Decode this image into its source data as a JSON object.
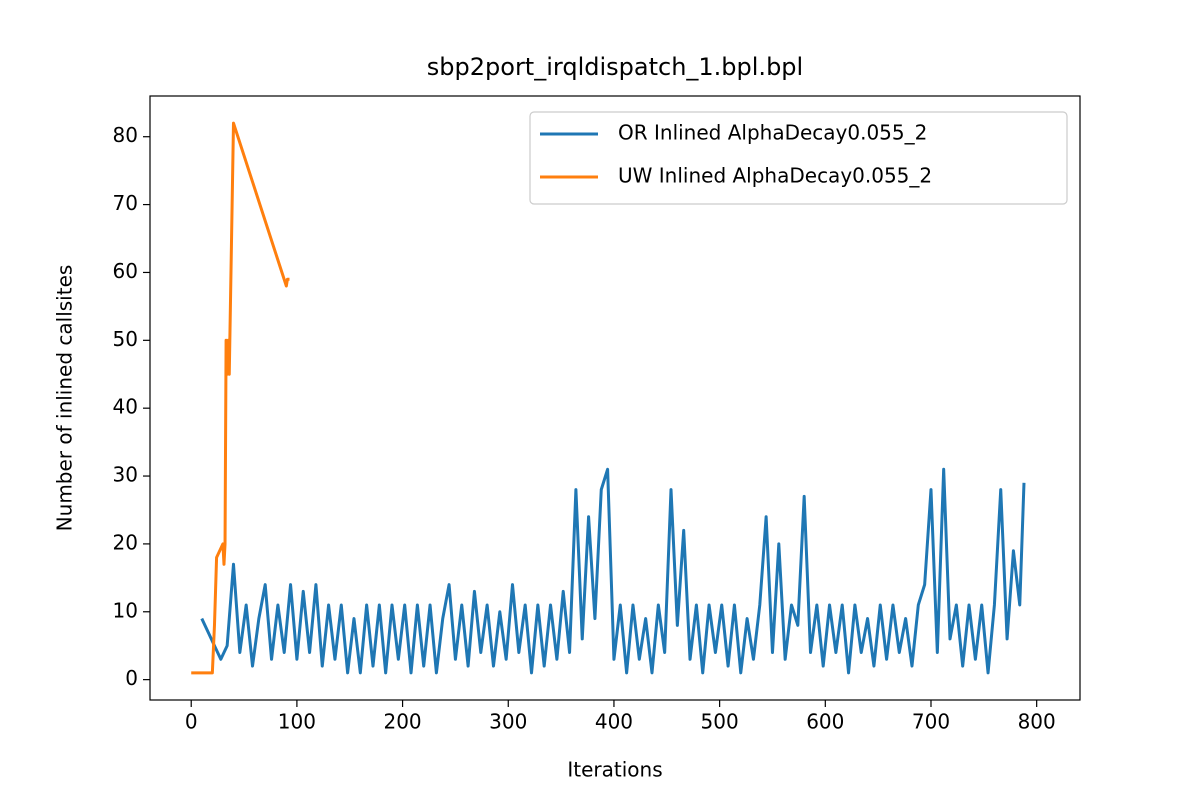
{
  "chart_data": {
    "type": "line",
    "title": "sbp2port_irqldispatch_1.bpl.bpl",
    "x_label": "Iterations",
    "y_label": "Number of inlined callsites",
    "xlim": [
      -39,
      841
    ],
    "ylim": [
      -3,
      86
    ],
    "xticks": [
      0,
      100,
      200,
      300,
      400,
      500,
      600,
      700,
      800
    ],
    "yticks": [
      0,
      10,
      20,
      30,
      40,
      50,
      60,
      70,
      80
    ],
    "legend": "upper right",
    "series": [
      {
        "name": "OR Inlined AlphaDecay0.055_2",
        "color": "#1f77b4",
        "x": [
          10,
          16,
          22,
          28,
          34,
          40,
          46,
          52,
          58,
          64,
          70,
          76,
          82,
          88,
          94,
          100,
          106,
          112,
          118,
          124,
          130,
          136,
          142,
          148,
          154,
          160,
          166,
          172,
          178,
          184,
          190,
          196,
          202,
          208,
          214,
          220,
          226,
          232,
          238,
          244,
          250,
          256,
          262,
          268,
          274,
          280,
          286,
          292,
          298,
          304,
          310,
          316,
          322,
          328,
          334,
          340,
          346,
          352,
          358,
          364,
          370,
          376,
          382,
          388,
          394,
          400,
          406,
          412,
          418,
          424,
          430,
          436,
          442,
          448,
          454,
          460,
          466,
          472,
          478,
          484,
          490,
          496,
          502,
          508,
          514,
          520,
          526,
          532,
          538,
          544,
          550,
          556,
          562,
          568,
          574,
          580,
          586,
          592,
          598,
          604,
          610,
          616,
          622,
          628,
          634,
          640,
          646,
          652,
          658,
          664,
          670,
          676,
          682,
          688,
          694,
          700,
          706,
          712,
          718,
          724,
          730,
          736,
          742,
          748,
          754,
          760,
          766,
          772,
          778,
          784,
          788
        ],
        "values": [
          9,
          7,
          5,
          3,
          5,
          17,
          4,
          11,
          2,
          9,
          14,
          3,
          11,
          4,
          14,
          3,
          13,
          4,
          14,
          2,
          11,
          3,
          11,
          1,
          9,
          1,
          11,
          2,
          11,
          1,
          11,
          3,
          11,
          1,
          11,
          2,
          11,
          1,
          9,
          14,
          3,
          11,
          2,
          13,
          4,
          11,
          2,
          10,
          3,
          14,
          4,
          11,
          1,
          11,
          2,
          11,
          3,
          13,
          4,
          28,
          6,
          24,
          9,
          28,
          31,
          3,
          11,
          1,
          11,
          3,
          9,
          1,
          11,
          4,
          28,
          8,
          22,
          3,
          11,
          1,
          11,
          4,
          11,
          2,
          11,
          1,
          9,
          3,
          11,
          24,
          4,
          20,
          3,
          11,
          8,
          27,
          4,
          11,
          2,
          11,
          4,
          11,
          1,
          11,
          4,
          9,
          2,
          11,
          3,
          11,
          4,
          9,
          2,
          11,
          14,
          28,
          4,
          31,
          6,
          11,
          2,
          11,
          3,
          11,
          1,
          11,
          28,
          6,
          19,
          11,
          29
        ]
      },
      {
        "name": "UW Inlined AlphaDecay0.055_2",
        "color": "#ff7f0e",
        "x": [
          0,
          5,
          10,
          15,
          20,
          22,
          24,
          30,
          31,
          32,
          33,
          34,
          35,
          36,
          40,
          90,
          91,
          93
        ],
        "values": [
          1,
          1,
          1,
          1,
          1,
          8,
          18,
          20,
          17,
          20,
          50,
          45,
          50,
          45,
          82,
          58,
          59,
          59
        ]
      }
    ]
  }
}
